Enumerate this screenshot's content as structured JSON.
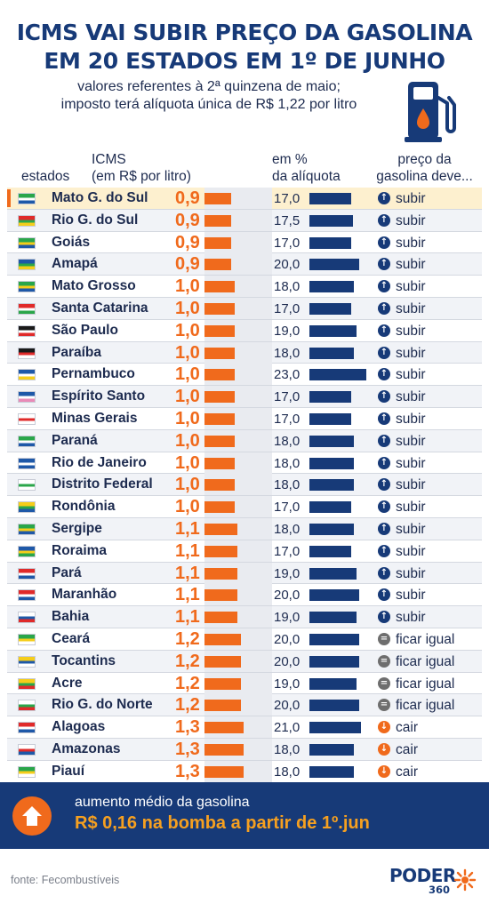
{
  "header": {
    "title_line1": "ICMS VAI SUBIR PREÇO DA GASOLINA",
    "title_line2": "EM 20 ESTADOS EM 1º DE JUNHO",
    "subtitle_line1": "valores referentes à 2ª quinzena de maio;",
    "subtitle_line2": "imposto terá alíquota única de R$ 1,22 por litro",
    "icon": "gas-pump-icon"
  },
  "columns": {
    "estados": "estados",
    "icms_line1": "ICMS",
    "icms_line2": "(em R$ por litro)",
    "pct_line1": "em %",
    "pct_line2": "da alíquota",
    "preco_line1": "preço da",
    "preco_line2": "gasolina deve..."
  },
  "colors": {
    "navy": "#173a78",
    "orange": "#f06a1c",
    "highlight": "#fdf0cf",
    "gray": "#6e6e6e"
  },
  "chart_data": {
    "type": "table",
    "columns": [
      "estados",
      "ICMS (em R$ por litro)",
      "em % da alíquota",
      "preço da gasolina deve..."
    ],
    "icms_scale_max": 1.3,
    "pct_scale_max": 23.0,
    "rows": [
      {
        "state": "Mato G. do Sul",
        "icms": "0,9",
        "icms_value": 0.9,
        "pct": "17,0",
        "pct_value": 17.0,
        "trend": "subir",
        "direction": "up",
        "highlight": true
      },
      {
        "state": "Rio G. do Sul",
        "icms": "0,9",
        "icms_value": 0.9,
        "pct": "17,5",
        "pct_value": 17.5,
        "trend": "subir",
        "direction": "up"
      },
      {
        "state": "Goiás",
        "icms": "0,9",
        "icms_value": 0.9,
        "pct": "17,0",
        "pct_value": 17.0,
        "trend": "subir",
        "direction": "up"
      },
      {
        "state": "Amapá",
        "icms": "0,9",
        "icms_value": 0.9,
        "pct": "20,0",
        "pct_value": 20.0,
        "trend": "subir",
        "direction": "up"
      },
      {
        "state": "Mato Grosso",
        "icms": "1,0",
        "icms_value": 1.0,
        "pct": "18,0",
        "pct_value": 18.0,
        "trend": "subir",
        "direction": "up"
      },
      {
        "state": "Santa Catarina",
        "icms": "1,0",
        "icms_value": 1.0,
        "pct": "17,0",
        "pct_value": 17.0,
        "trend": "subir",
        "direction": "up"
      },
      {
        "state": "São Paulo",
        "icms": "1,0",
        "icms_value": 1.0,
        "pct": "19,0",
        "pct_value": 19.0,
        "trend": "subir",
        "direction": "up"
      },
      {
        "state": "Paraíba",
        "icms": "1,0",
        "icms_value": 1.0,
        "pct": "18,0",
        "pct_value": 18.0,
        "trend": "subir",
        "direction": "up"
      },
      {
        "state": "Pernambuco",
        "icms": "1,0",
        "icms_value": 1.0,
        "pct": "23,0",
        "pct_value": 23.0,
        "trend": "subir",
        "direction": "up"
      },
      {
        "state": "Espírito Santo",
        "icms": "1,0",
        "icms_value": 1.0,
        "pct": "17,0",
        "pct_value": 17.0,
        "trend": "subir",
        "direction": "up"
      },
      {
        "state": "Minas Gerais",
        "icms": "1,0",
        "icms_value": 1.0,
        "pct": "17,0",
        "pct_value": 17.0,
        "trend": "subir",
        "direction": "up"
      },
      {
        "state": "Paraná",
        "icms": "1,0",
        "icms_value": 1.0,
        "pct": "18,0",
        "pct_value": 18.0,
        "trend": "subir",
        "direction": "up"
      },
      {
        "state": "Rio de Janeiro",
        "icms": "1,0",
        "icms_value": 1.0,
        "pct": "18,0",
        "pct_value": 18.0,
        "trend": "subir",
        "direction": "up"
      },
      {
        "state": "Distrito Federal",
        "icms": "1,0",
        "icms_value": 1.0,
        "pct": "18,0",
        "pct_value": 18.0,
        "trend": "subir",
        "direction": "up"
      },
      {
        "state": "Rondônia",
        "icms": "1,0",
        "icms_value": 1.0,
        "pct": "17,0",
        "pct_value": 17.0,
        "trend": "subir",
        "direction": "up"
      },
      {
        "state": "Sergipe",
        "icms": "1,1",
        "icms_value": 1.1,
        "pct": "18,0",
        "pct_value": 18.0,
        "trend": "subir",
        "direction": "up"
      },
      {
        "state": "Roraima",
        "icms": "1,1",
        "icms_value": 1.1,
        "pct": "17,0",
        "pct_value": 17.0,
        "trend": "subir",
        "direction": "up"
      },
      {
        "state": "Pará",
        "icms": "1,1",
        "icms_value": 1.1,
        "pct": "19,0",
        "pct_value": 19.0,
        "trend": "subir",
        "direction": "up"
      },
      {
        "state": "Maranhão",
        "icms": "1,1",
        "icms_value": 1.1,
        "pct": "20,0",
        "pct_value": 20.0,
        "trend": "subir",
        "direction": "up"
      },
      {
        "state": "Bahia",
        "icms": "1,1",
        "icms_value": 1.1,
        "pct": "19,0",
        "pct_value": 19.0,
        "trend": "subir",
        "direction": "up"
      },
      {
        "state": "Ceará",
        "icms": "1,2",
        "icms_value": 1.2,
        "pct": "20,0",
        "pct_value": 20.0,
        "trend": "ficar igual",
        "direction": "same"
      },
      {
        "state": "Tocantins",
        "icms": "1,2",
        "icms_value": 1.2,
        "pct": "20,0",
        "pct_value": 20.0,
        "trend": "ficar igual",
        "direction": "same"
      },
      {
        "state": "Acre",
        "icms": "1,2",
        "icms_value": 1.2,
        "pct": "19,0",
        "pct_value": 19.0,
        "trend": "ficar igual",
        "direction": "same"
      },
      {
        "state": "Rio G. do Norte",
        "icms": "1,2",
        "icms_value": 1.2,
        "pct": "20,0",
        "pct_value": 20.0,
        "trend": "ficar igual",
        "direction": "same"
      },
      {
        "state": "Alagoas",
        "icms": "1,3",
        "icms_value": 1.3,
        "pct": "21,0",
        "pct_value": 21.0,
        "trend": "cair",
        "direction": "down"
      },
      {
        "state": "Amazonas",
        "icms": "1,3",
        "icms_value": 1.3,
        "pct": "18,0",
        "pct_value": 18.0,
        "trend": "cair",
        "direction": "down"
      },
      {
        "state": "Piauí",
        "icms": "1,3",
        "icms_value": 1.3,
        "pct": "18,0",
        "pct_value": 18.0,
        "trend": "cair",
        "direction": "down"
      }
    ]
  },
  "banner": {
    "line1": "aumento médio da gasolina",
    "line2": "R$ 0,16 na bomba a partir de 1º.jun",
    "icon": "arrow-up-icon"
  },
  "footer": {
    "source": "fonte: Fecombustíveis",
    "logo_word": "PODER",
    "logo_number": "360"
  }
}
